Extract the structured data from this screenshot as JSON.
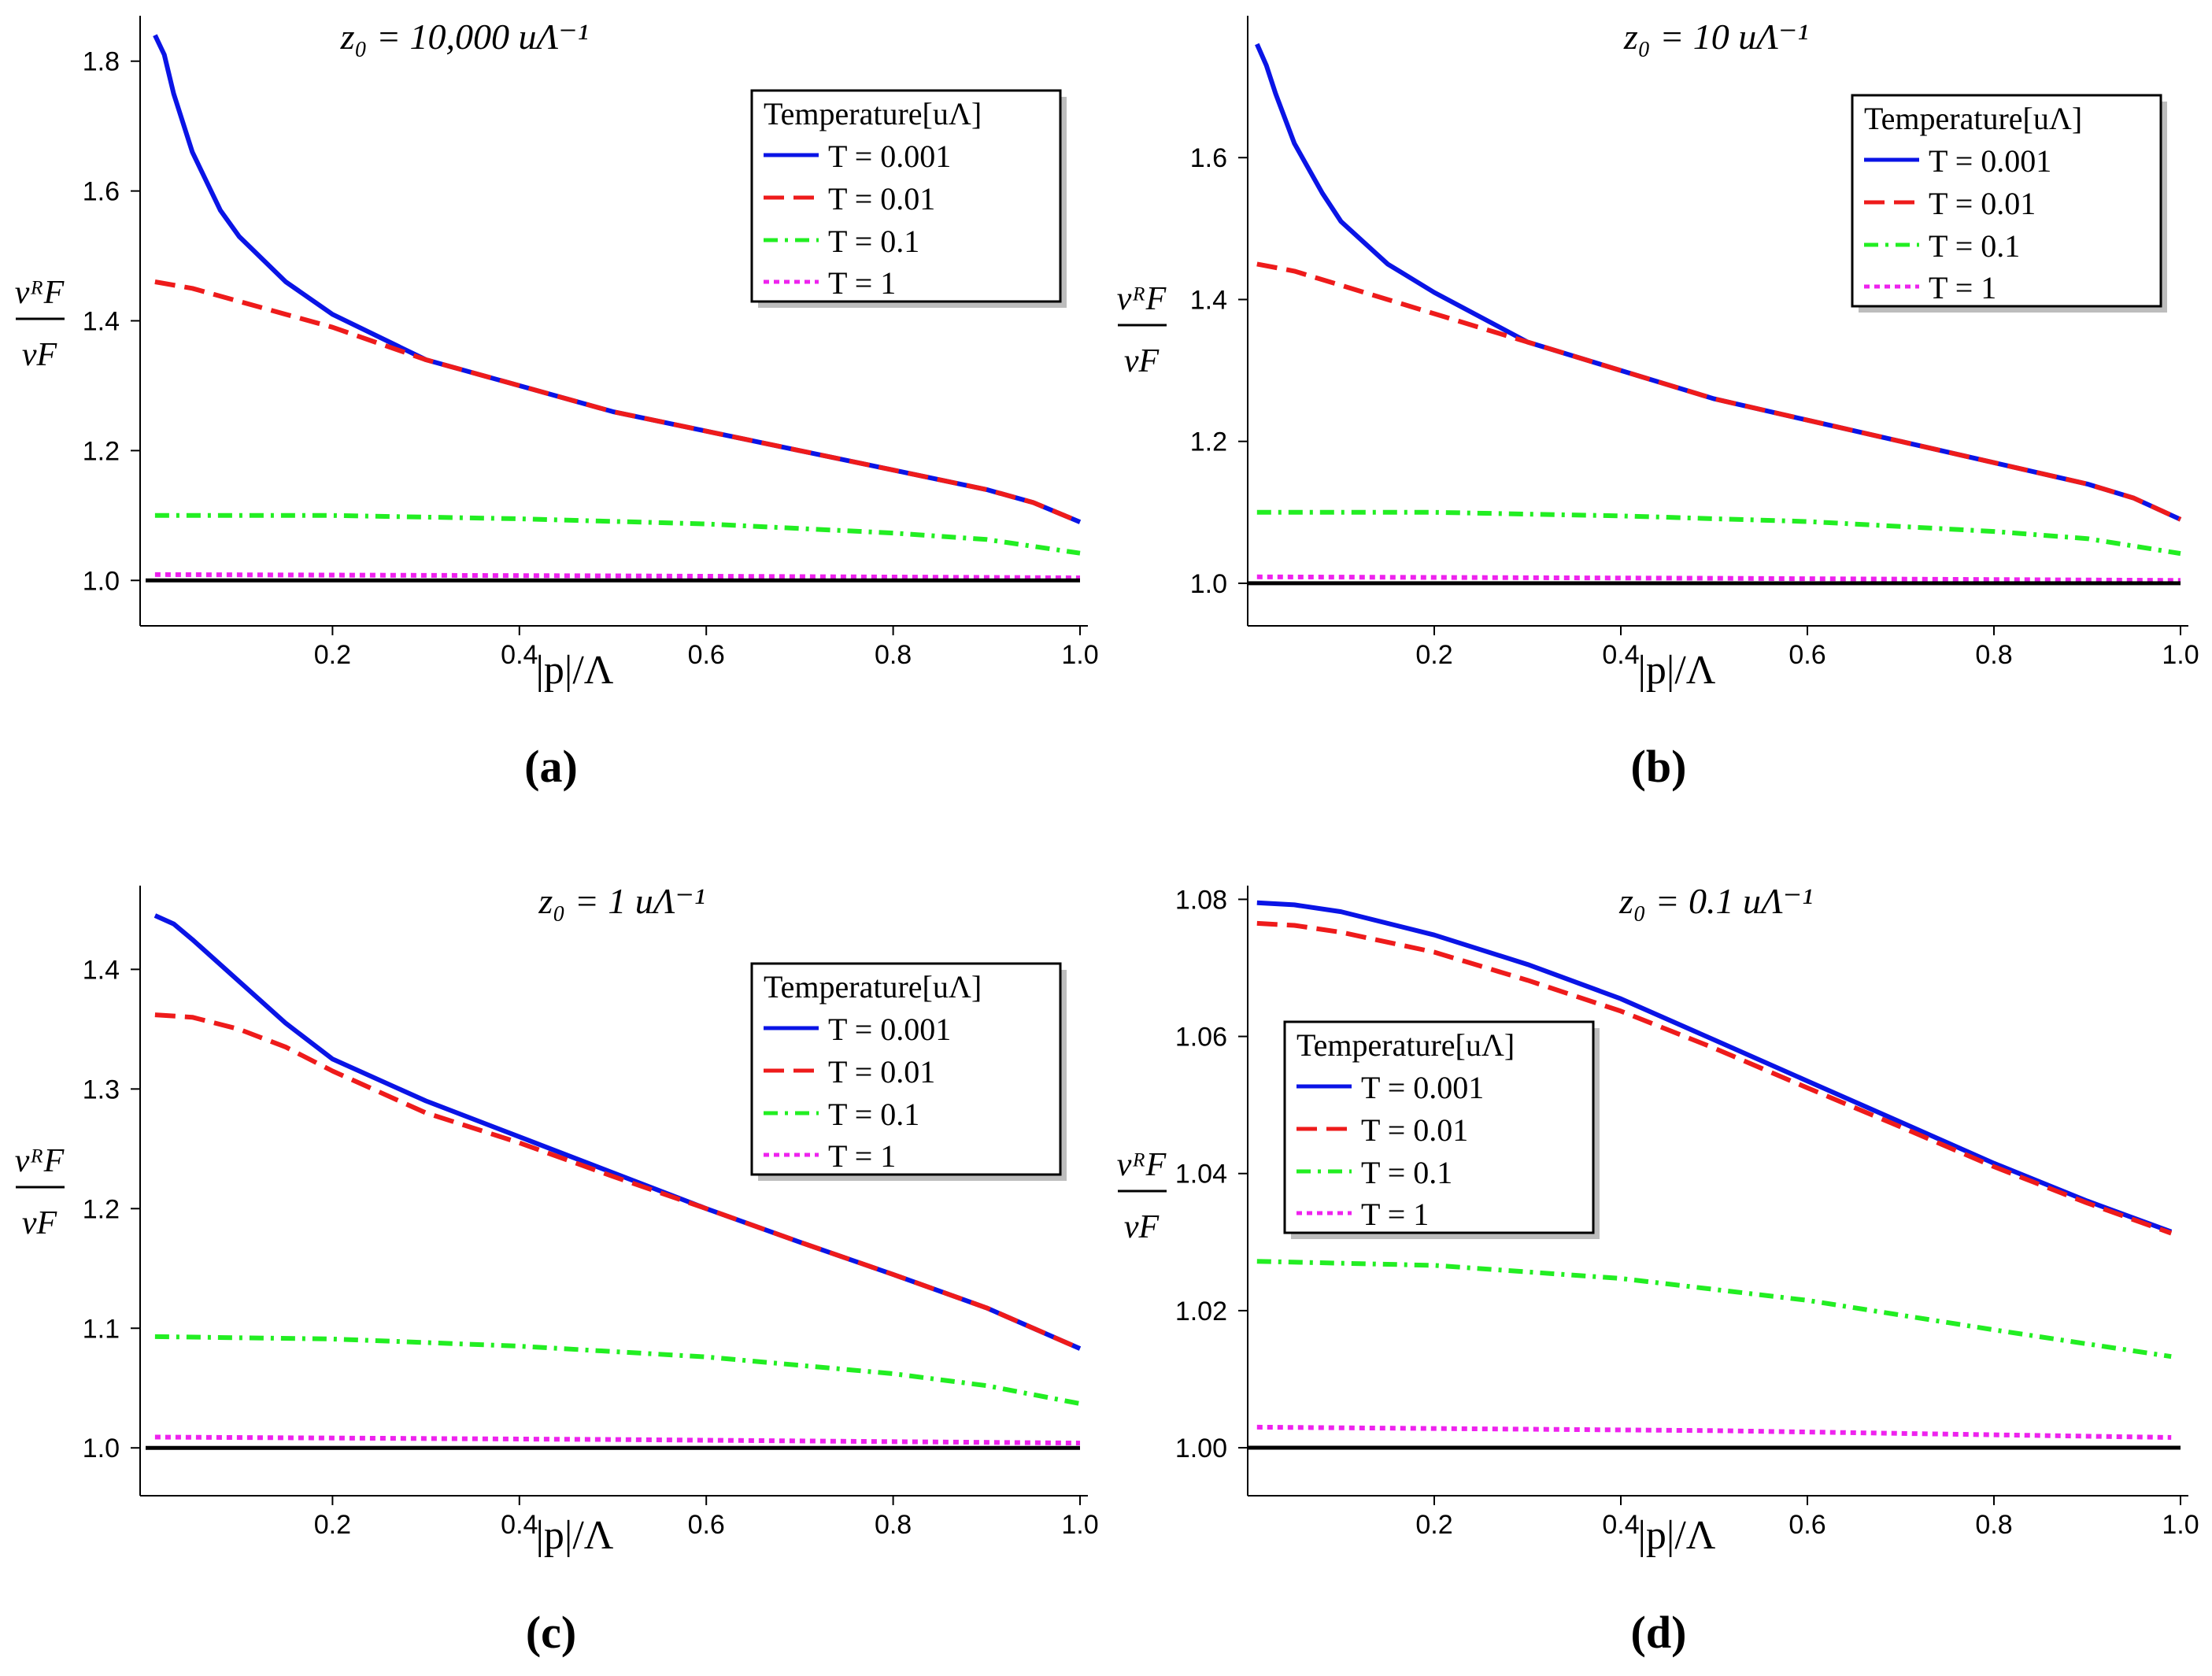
{
  "chart_data": [
    {
      "type": "line",
      "panel": "(a)",
      "title": "z₀ = 10,000 uΛ⁻¹",
      "xlabel": "|p|/Λ",
      "ylabel_num": "vᴿF",
      "ylabel_den": "vF",
      "xlim": [
        0,
        1.0
      ],
      "ylim": [
        0.93,
        1.87
      ],
      "xticks": [
        0.2,
        0.4,
        0.6,
        0.8,
        1.0
      ],
      "yticks": [
        1.0,
        1.2,
        1.4,
        1.6,
        1.8
      ],
      "ytick_decimals": 1,
      "legend": {
        "title": "Temperature[uΛ]",
        "position": "top-right"
      },
      "series": [
        {
          "name": "T = 0.001",
          "color": "#0a14e6",
          "dash": "solid",
          "x": [
            0.01,
            0.02,
            0.03,
            0.05,
            0.08,
            0.1,
            0.15,
            0.2,
            0.3,
            0.4,
            0.5,
            0.6,
            0.7,
            0.8,
            0.9,
            0.95,
            1.0
          ],
          "y": [
            1.84,
            1.81,
            1.75,
            1.66,
            1.57,
            1.53,
            1.46,
            1.41,
            1.34,
            1.3,
            1.26,
            1.23,
            1.2,
            1.17,
            1.14,
            1.12,
            1.09
          ]
        },
        {
          "name": "T = 0.01",
          "color": "#ee1b1b",
          "dash": "dashed",
          "x": [
            0.01,
            0.05,
            0.1,
            0.15,
            0.2,
            0.3,
            0.4,
            0.5,
            0.6,
            0.7,
            0.8,
            0.9,
            0.95,
            1.0
          ],
          "y": [
            1.46,
            1.45,
            1.43,
            1.41,
            1.39,
            1.34,
            1.3,
            1.26,
            1.23,
            1.2,
            1.17,
            1.14,
            1.12,
            1.09
          ]
        },
        {
          "name": "T = 0.1",
          "color": "#22ee22",
          "dash": "dashdot",
          "x": [
            0.01,
            0.2,
            0.4,
            0.6,
            0.8,
            0.9,
            1.0
          ],
          "y": [
            1.1,
            1.1,
            1.095,
            1.087,
            1.073,
            1.063,
            1.042
          ]
        },
        {
          "name": "T = 1",
          "color": "#ee22ee",
          "dash": "dotted",
          "x": [
            0.01,
            0.5,
            1.0
          ],
          "y": [
            1.009,
            1.007,
            1.004
          ]
        },
        {
          "name": "reference",
          "color": "#000000",
          "dash": "solid",
          "legend": false,
          "x": [
            0.0,
            1.0
          ],
          "y": [
            1.0,
            1.0
          ]
        }
      ]
    },
    {
      "type": "line",
      "panel": "(b)",
      "title": "z₀ = 10 uΛ⁻¹",
      "xlabel": "|p|/Λ",
      "ylabel_num": "vᴿF",
      "ylabel_den": "vF",
      "xlim": [
        0,
        1.0
      ],
      "ylim": [
        0.94,
        1.8
      ],
      "xticks": [
        0.2,
        0.4,
        0.6,
        0.8,
        1.0
      ],
      "yticks": [
        1.0,
        1.2,
        1.4,
        1.6
      ],
      "ytick_decimals": 1,
      "legend": {
        "title": "Temperature[uΛ]",
        "position": "top-right"
      },
      "series": [
        {
          "name": "T = 0.001",
          "color": "#0a14e6",
          "dash": "solid",
          "x": [
            0.01,
            0.02,
            0.03,
            0.05,
            0.08,
            0.1,
            0.15,
            0.2,
            0.3,
            0.4,
            0.5,
            0.6,
            0.7,
            0.8,
            0.9,
            0.95,
            1.0
          ],
          "y": [
            1.76,
            1.73,
            1.69,
            1.62,
            1.55,
            1.51,
            1.45,
            1.41,
            1.34,
            1.3,
            1.26,
            1.23,
            1.2,
            1.17,
            1.14,
            1.12,
            1.09
          ]
        },
        {
          "name": "T = 0.01",
          "color": "#ee1b1b",
          "dash": "dashed",
          "x": [
            0.01,
            0.05,
            0.1,
            0.15,
            0.2,
            0.3,
            0.4,
            0.5,
            0.6,
            0.7,
            0.8,
            0.9,
            0.95,
            1.0
          ],
          "y": [
            1.45,
            1.44,
            1.42,
            1.4,
            1.38,
            1.34,
            1.3,
            1.26,
            1.23,
            1.2,
            1.17,
            1.14,
            1.12,
            1.09
          ]
        },
        {
          "name": "T = 0.1",
          "color": "#22ee22",
          "dash": "dashdot",
          "x": [
            0.01,
            0.2,
            0.4,
            0.6,
            0.8,
            0.9,
            1.0
          ],
          "y": [
            1.1,
            1.1,
            1.095,
            1.087,
            1.073,
            1.063,
            1.042
          ]
        },
        {
          "name": "T = 1",
          "color": "#ee22ee",
          "dash": "dotted",
          "x": [
            0.01,
            0.5,
            1.0
          ],
          "y": [
            1.009,
            1.007,
            1.004
          ]
        },
        {
          "name": "reference",
          "color": "#000000",
          "dash": "solid",
          "legend": false,
          "x": [
            0.0,
            1.0
          ],
          "y": [
            1.0,
            1.0
          ]
        }
      ]
    },
    {
      "type": "line",
      "panel": "(c)",
      "title": "z₀ = 1 uΛ⁻¹",
      "xlabel": "|p|/Λ",
      "ylabel_num": "vᴿF",
      "ylabel_den": "vF",
      "xlim": [
        0,
        1.0
      ],
      "ylim": [
        0.96,
        1.47
      ],
      "xticks": [
        0.2,
        0.4,
        0.6,
        0.8,
        1.0
      ],
      "yticks": [
        1.0,
        1.1,
        1.2,
        1.3,
        1.4
      ],
      "ytick_decimals": 1,
      "legend": {
        "title": "Temperature[uΛ]",
        "position": "top-right"
      },
      "series": [
        {
          "name": "T = 0.001",
          "color": "#0a14e6",
          "dash": "solid",
          "x": [
            0.01,
            0.03,
            0.05,
            0.1,
            0.15,
            0.2,
            0.3,
            0.4,
            0.5,
            0.6,
            0.7,
            0.8,
            0.9,
            1.0
          ],
          "y": [
            1.445,
            1.438,
            1.425,
            1.39,
            1.355,
            1.325,
            1.29,
            1.26,
            1.23,
            1.2,
            1.172,
            1.145,
            1.117,
            1.083
          ]
        },
        {
          "name": "T = 0.01",
          "color": "#ee1b1b",
          "dash": "dashed",
          "x": [
            0.01,
            0.05,
            0.1,
            0.15,
            0.2,
            0.3,
            0.4,
            0.5,
            0.6,
            0.7,
            0.8,
            0.9,
            1.0
          ],
          "y": [
            1.362,
            1.36,
            1.35,
            1.335,
            1.315,
            1.28,
            1.255,
            1.227,
            1.2,
            1.172,
            1.145,
            1.117,
            1.083
          ]
        },
        {
          "name": "T = 0.1",
          "color": "#22ee22",
          "dash": "dashdot",
          "x": [
            0.01,
            0.2,
            0.4,
            0.6,
            0.8,
            0.9,
            1.0
          ],
          "y": [
            1.093,
            1.091,
            1.085,
            1.076,
            1.062,
            1.052,
            1.037
          ]
        },
        {
          "name": "T = 1",
          "color": "#ee22ee",
          "dash": "dotted",
          "x": [
            0.01,
            0.5,
            1.0
          ],
          "y": [
            1.009,
            1.007,
            1.004
          ]
        },
        {
          "name": "reference",
          "color": "#000000",
          "dash": "solid",
          "legend": false,
          "x": [
            0.0,
            1.0
          ],
          "y": [
            1.0,
            1.0
          ]
        }
      ]
    },
    {
      "type": "line",
      "panel": "(d)",
      "title": "z₀ = 0.1 uΛ⁻¹",
      "xlabel": "|p|/Λ",
      "ylabel_num": "vᴿF",
      "ylabel_den": "vF",
      "xlim": [
        0,
        1.0
      ],
      "ylim": [
        0.993,
        1.082
      ],
      "xticks": [
        0.2,
        0.4,
        0.6,
        0.8,
        1.0
      ],
      "yticks": [
        1.0,
        1.02,
        1.04,
        1.06,
        1.08
      ],
      "ytick_decimals": 2,
      "legend": {
        "title": "Temperature[uΛ]",
        "position": "center-left"
      },
      "series": [
        {
          "name": "T = 0.001",
          "color": "#0a14e6",
          "dash": "solid",
          "x": [
            0.01,
            0.05,
            0.1,
            0.2,
            0.3,
            0.4,
            0.5,
            0.6,
            0.7,
            0.8,
            0.9,
            0.99
          ],
          "y": [
            1.0795,
            1.0792,
            1.0782,
            1.0748,
            1.0705,
            1.0655,
            1.0595,
            1.0535,
            1.0475,
            1.0415,
            1.036,
            1.0315
          ]
        },
        {
          "name": "T = 0.01",
          "color": "#ee1b1b",
          "dash": "dashed",
          "x": [
            0.01,
            0.05,
            0.1,
            0.2,
            0.3,
            0.4,
            0.5,
            0.6,
            0.7,
            0.8,
            0.9,
            0.99
          ],
          "y": [
            1.0765,
            1.0762,
            1.0752,
            1.0723,
            1.0682,
            1.0637,
            1.0583,
            1.0525,
            1.0468,
            1.041,
            1.0357,
            1.0313
          ]
        },
        {
          "name": "T = 0.1",
          "color": "#22ee22",
          "dash": "dashdot",
          "x": [
            0.01,
            0.2,
            0.4,
            0.6,
            0.8,
            0.99
          ],
          "y": [
            1.0272,
            1.0266,
            1.0247,
            1.0215,
            1.0172,
            1.0133
          ]
        },
        {
          "name": "T = 1",
          "color": "#ee22ee",
          "dash": "dotted",
          "x": [
            0.01,
            0.5,
            0.99
          ],
          "y": [
            1.003,
            1.0025,
            1.0015
          ]
        },
        {
          "name": "reference",
          "color": "#000000",
          "dash": "solid",
          "legend": false,
          "x": [
            0.0,
            1.0
          ],
          "y": [
            1.0,
            1.0
          ]
        }
      ]
    }
  ]
}
